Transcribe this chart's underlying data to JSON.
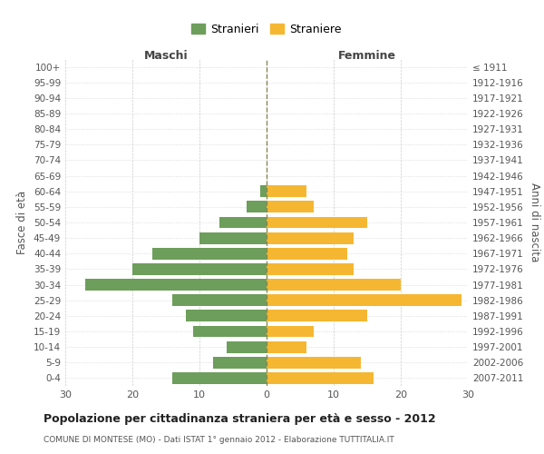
{
  "age_groups": [
    "0-4",
    "5-9",
    "10-14",
    "15-19",
    "20-24",
    "25-29",
    "30-34",
    "35-39",
    "40-44",
    "45-49",
    "50-54",
    "55-59",
    "60-64",
    "65-69",
    "70-74",
    "75-79",
    "80-84",
    "85-89",
    "90-94",
    "95-99",
    "100+"
  ],
  "birth_years": [
    "2007-2011",
    "2002-2006",
    "1997-2001",
    "1992-1996",
    "1987-1991",
    "1982-1986",
    "1977-1981",
    "1972-1976",
    "1967-1971",
    "1962-1966",
    "1957-1961",
    "1952-1956",
    "1947-1951",
    "1942-1946",
    "1937-1941",
    "1932-1936",
    "1927-1931",
    "1922-1926",
    "1917-1921",
    "1912-1916",
    "≤ 1911"
  ],
  "maschi": [
    14,
    8,
    6,
    11,
    12,
    14,
    27,
    20,
    17,
    10,
    7,
    3,
    1,
    0,
    0,
    0,
    0,
    0,
    0,
    0,
    0
  ],
  "femmine": [
    16,
    14,
    6,
    7,
    15,
    29,
    20,
    13,
    12,
    13,
    15,
    7,
    6,
    0,
    0,
    0,
    0,
    0,
    0,
    0,
    0
  ],
  "male_color": "#6d9e5b",
  "female_color": "#f5b731",
  "xlim": 30,
  "title": "Popolazione per cittadinanza straniera per età e sesso - 2012",
  "subtitle": "COMUNE DI MONTESE (MO) - Dati ISTAT 1° gennaio 2012 - Elaborazione TUTTITALIA.IT",
  "ylabel_left": "Fasce di età",
  "ylabel_right": "Anni di nascita",
  "legend_male": "Stranieri",
  "legend_female": "Straniere",
  "header_left": "Maschi",
  "header_right": "Femmine",
  "background_color": "#ffffff",
  "grid_color": "#cccccc",
  "bar_height": 0.75
}
